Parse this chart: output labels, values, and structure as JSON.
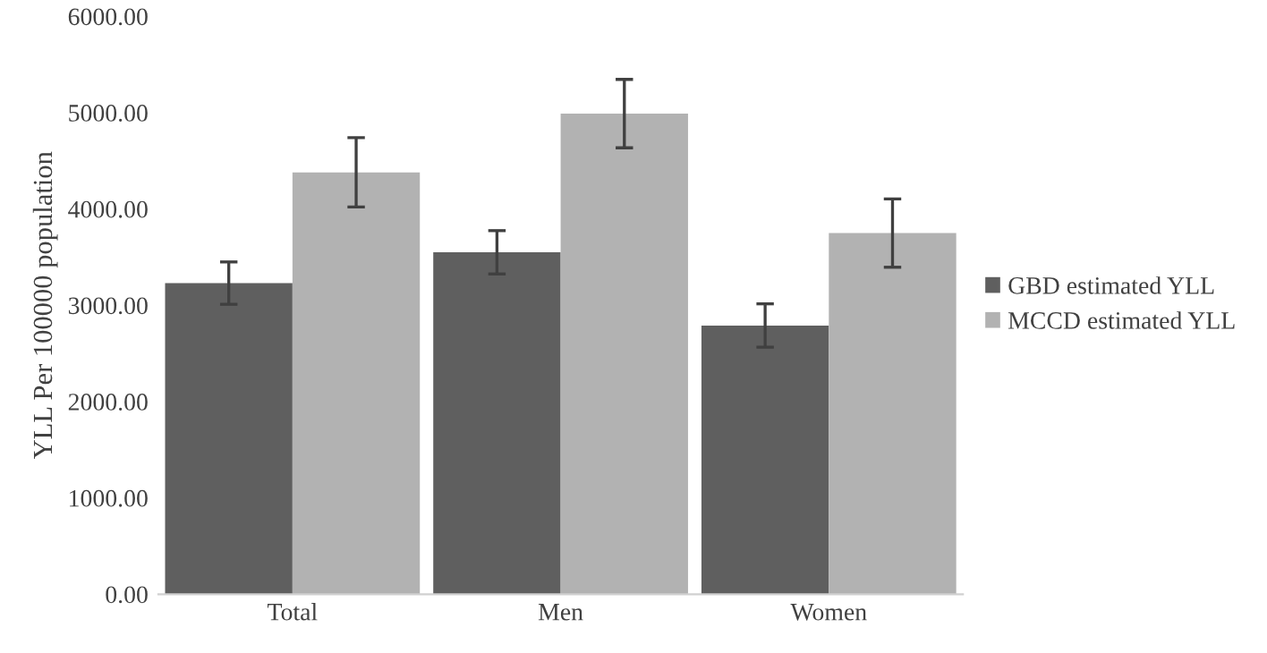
{
  "chart_data": {
    "type": "bar",
    "ylabel": "YLL Per 100000 population",
    "categories": [
      "Total",
      "Men",
      "Women"
    ],
    "series": [
      {
        "name": "GBD estimated YLL",
        "color": "#5f5f5f",
        "values": [
          3230,
          3550,
          2790
        ],
        "errors": [
          220,
          225,
          225
        ]
      },
      {
        "name": "MCCD estimated YLL",
        "color": "#b2b2b2",
        "values": [
          4380,
          4990,
          3750
        ],
        "errors": [
          360,
          355,
          355
        ]
      }
    ],
    "ylim": [
      0,
      6000
    ],
    "yticks": [
      {
        "value": 0,
        "label": "0.00"
      },
      {
        "value": 1000,
        "label": "1000.00"
      },
      {
        "value": 2000,
        "label": "2000.00"
      },
      {
        "value": 3000,
        "label": "3000.00"
      },
      {
        "value": 4000,
        "label": "4000.00"
      },
      {
        "value": 5000,
        "label": "5000.00"
      },
      {
        "value": 6000,
        "label": "6000.00"
      }
    ],
    "grid": false,
    "legend": "right"
  }
}
